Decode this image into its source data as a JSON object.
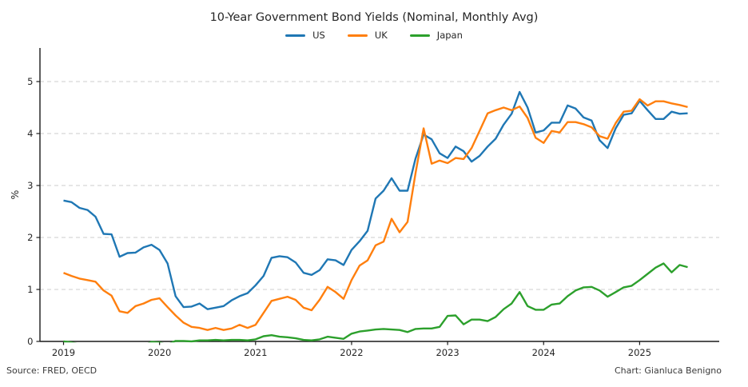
{
  "figure": {
    "title": "10-Year Government Bond Yields (Nominal, Monthly Avg)",
    "source_note": "Source: FRED, OECD",
    "credit_note": "Chart: Gianluca Benigno"
  },
  "chart_data": {
    "type": "line",
    "title": "10-Year Government Bond Yields (Nominal, Monthly Avg)",
    "xlabel": "",
    "ylabel": "%",
    "x_unit": "month",
    "x_start": "2019-01",
    "x_end": "2025-07",
    "frequency": "monthly",
    "grid": "horizontal-dashed",
    "legend_position": "top-center",
    "ylim": [
      0,
      5.65
    ],
    "xtick_labels": [
      "2019",
      "2020",
      "2021",
      "2022",
      "2023",
      "2024",
      "2025"
    ],
    "ytick_labels": [
      "0",
      "1",
      "2",
      "3",
      "4",
      "5"
    ],
    "series": [
      {
        "name": "US",
        "color": "#1f77b4",
        "values": [
          2.71,
          2.68,
          2.57,
          2.53,
          2.4,
          2.07,
          2.06,
          1.63,
          1.7,
          1.71,
          1.81,
          1.86,
          1.76,
          1.5,
          0.87,
          0.66,
          0.67,
          0.73,
          0.62,
          0.65,
          0.68,
          0.79,
          0.87,
          0.93,
          1.08,
          1.26,
          1.61,
          1.64,
          1.62,
          1.52,
          1.32,
          1.28,
          1.37,
          1.58,
          1.56,
          1.47,
          1.76,
          1.93,
          2.13,
          2.75,
          2.9,
          3.14,
          2.9,
          2.9,
          3.52,
          3.98,
          3.89,
          3.62,
          3.53,
          3.75,
          3.66,
          3.46,
          3.57,
          3.75,
          3.9,
          4.17,
          4.38,
          4.8,
          4.5,
          4.02,
          4.06,
          4.21,
          4.21,
          4.54,
          4.48,
          4.31,
          4.25,
          3.87,
          3.72,
          4.1,
          4.36,
          4.39,
          4.63,
          4.45,
          4.28,
          4.28,
          4.42,
          4.38,
          4.39
        ]
      },
      {
        "name": "UK",
        "color": "#ff7f0e",
        "values": [
          1.32,
          1.26,
          1.21,
          1.18,
          1.15,
          0.98,
          0.88,
          0.58,
          0.55,
          0.68,
          0.73,
          0.8,
          0.83,
          0.66,
          0.5,
          0.36,
          0.28,
          0.26,
          0.22,
          0.26,
          0.22,
          0.25,
          0.32,
          0.26,
          0.32,
          0.55,
          0.78,
          0.82,
          0.86,
          0.8,
          0.65,
          0.6,
          0.8,
          1.05,
          0.95,
          0.82,
          1.18,
          1.46,
          1.56,
          1.85,
          1.92,
          2.36,
          2.1,
          2.3,
          3.24,
          4.1,
          3.42,
          3.48,
          3.43,
          3.53,
          3.51,
          3.72,
          4.05,
          4.39,
          4.45,
          4.5,
          4.45,
          4.52,
          4.3,
          3.92,
          3.82,
          4.05,
          4.02,
          4.22,
          4.22,
          4.18,
          4.12,
          3.95,
          3.9,
          4.2,
          4.42,
          4.44,
          4.66,
          4.54,
          4.62,
          4.62,
          4.58,
          4.55,
          4.51
        ]
      },
      {
        "name": "Japan",
        "color": "#2ca02c",
        "values": [
          0.0,
          -0.02,
          -0.05,
          -0.05,
          -0.06,
          -0.13,
          -0.15,
          -0.22,
          -0.21,
          -0.14,
          -0.08,
          -0.01,
          -0.02,
          -0.06,
          0.01,
          0.01,
          0.0,
          0.02,
          0.02,
          0.03,
          0.02,
          0.03,
          0.03,
          0.02,
          0.04,
          0.1,
          0.12,
          0.09,
          0.08,
          0.06,
          0.03,
          0.02,
          0.04,
          0.09,
          0.07,
          0.05,
          0.15,
          0.19,
          0.21,
          0.23,
          0.24,
          0.23,
          0.22,
          0.18,
          0.24,
          0.25,
          0.25,
          0.28,
          0.49,
          0.5,
          0.33,
          0.42,
          0.42,
          0.39,
          0.47,
          0.62,
          0.73,
          0.95,
          0.68,
          0.61,
          0.61,
          0.71,
          0.73,
          0.87,
          0.98,
          1.04,
          1.05,
          0.98,
          0.86,
          0.95,
          1.04,
          1.07,
          1.18,
          1.3,
          1.42,
          1.5,
          1.33,
          1.47,
          1.43
        ]
      }
    ]
  }
}
